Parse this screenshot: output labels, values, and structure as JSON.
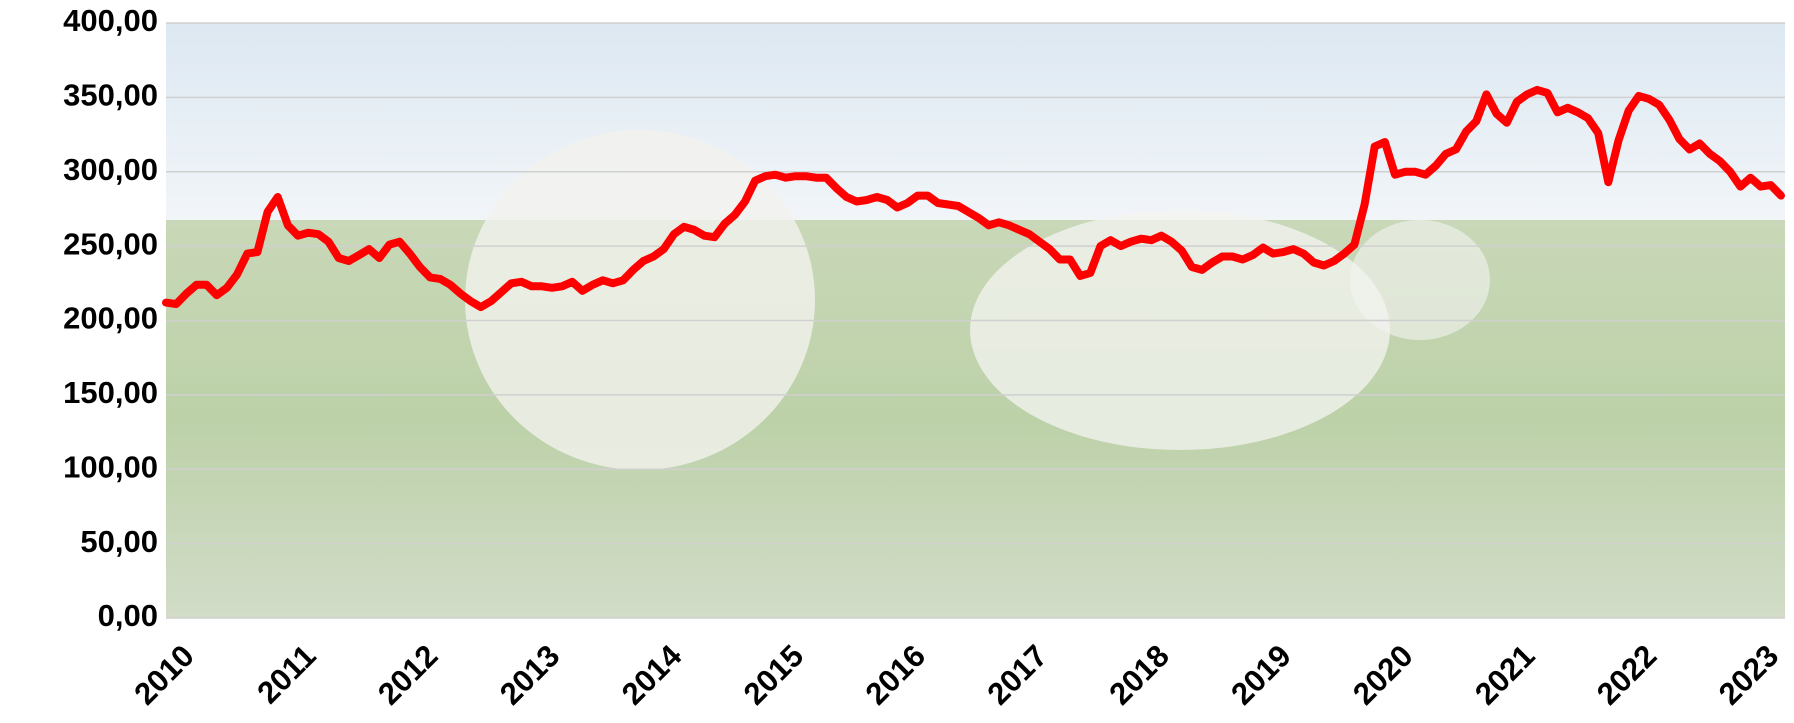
{
  "chart_data": {
    "type": "line",
    "categories": [
      "2010",
      null,
      null,
      null,
      null,
      null,
      null,
      null,
      null,
      null,
      null,
      null,
      "2011",
      null,
      null,
      null,
      null,
      null,
      null,
      null,
      null,
      null,
      null,
      null,
      "2012",
      null,
      null,
      null,
      null,
      null,
      null,
      null,
      null,
      null,
      null,
      null,
      "2013",
      null,
      null,
      null,
      null,
      null,
      null,
      null,
      null,
      null,
      null,
      null,
      "2014",
      null,
      null,
      null,
      null,
      null,
      null,
      null,
      null,
      null,
      null,
      null,
      "2015",
      null,
      null,
      null,
      null,
      null,
      null,
      null,
      null,
      null,
      null,
      null,
      "2016",
      null,
      null,
      null,
      null,
      null,
      null,
      null,
      null,
      null,
      null,
      null,
      "2017",
      null,
      null,
      null,
      null,
      null,
      null,
      null,
      null,
      null,
      null,
      null,
      "2018",
      null,
      null,
      null,
      null,
      null,
      null,
      null,
      null,
      null,
      null,
      null,
      "2019",
      null,
      null,
      null,
      null,
      null,
      null,
      null,
      null,
      null,
      null,
      null,
      "2020",
      null,
      null,
      null,
      null,
      null,
      null,
      null,
      null,
      null,
      null,
      null,
      "2021",
      null,
      null,
      null,
      null,
      null,
      null,
      null,
      null,
      null,
      null,
      null,
      "2022",
      null,
      null,
      null,
      null,
      null,
      null,
      null,
      null,
      null,
      null,
      null,
      "2023",
      null,
      null,
      null
    ],
    "values": [
      212,
      211,
      218,
      224,
      224,
      217,
      222,
      231,
      245,
      246,
      273,
      283,
      264,
      257,
      259,
      258,
      253,
      242,
      240,
      244,
      248,
      242,
      251,
      253,
      245,
      236,
      229,
      228,
      224,
      218,
      213,
      209,
      213,
      219,
      225,
      226,
      223,
      223,
      222,
      223,
      226,
      220,
      224,
      227,
      225,
      227,
      234,
      240,
      243,
      248,
      258,
      263,
      261,
      257,
      256,
      265,
      271,
      280,
      294,
      297,
      298,
      296,
      297,
      297,
      296,
      296,
      289,
      283,
      280,
      281,
      283,
      281,
      276,
      279,
      284,
      284,
      279,
      278,
      277,
      273,
      269,
      264,
      266,
      264,
      261,
      258,
      253,
      248,
      241,
      241,
      230,
      232,
      250,
      254,
      250,
      253,
      255,
      254,
      257,
      253,
      247,
      236,
      234,
      239,
      243,
      243,
      241,
      244,
      249,
      245,
      246,
      248,
      245,
      239,
      237,
      240,
      245,
      251,
      278,
      317,
      320,
      298,
      300,
      300,
      298,
      304,
      312,
      315,
      327,
      334,
      352,
      339,
      333,
      347,
      352,
      355,
      353,
      340,
      343,
      340,
      336,
      326,
      293,
      321,
      341,
      351,
      349,
      345,
      335,
      322,
      315,
      319,
      312,
      307,
      300,
      290,
      296,
      290,
      291,
      284
    ],
    "color": "#ff0000",
    "ylim": [
      0,
      400
    ],
    "yticks": [
      {
        "value": 0,
        "label": "0,00"
      },
      {
        "value": 50,
        "label": "50,00"
      },
      {
        "value": 100,
        "label": "100,00"
      },
      {
        "value": 150,
        "label": "150,00"
      },
      {
        "value": 200,
        "label": "200,00"
      },
      {
        "value": 250,
        "label": "250,00"
      },
      {
        "value": 300,
        "label": "300,00"
      },
      {
        "value": 350,
        "label": "350,00"
      },
      {
        "value": 400,
        "label": "400,00"
      }
    ],
    "grid": true
  }
}
